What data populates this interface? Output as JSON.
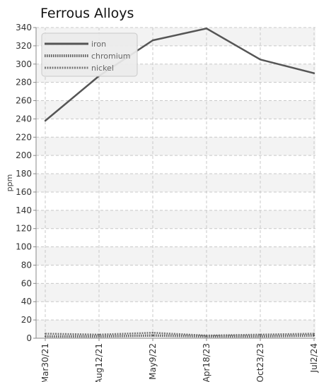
{
  "chart_data": {
    "type": "line",
    "title": "Ferrous Alloys",
    "ylabel": "ppm",
    "xlabel": "",
    "ylim": [
      0,
      340
    ],
    "y_ticks": [
      0,
      20,
      40,
      60,
      80,
      100,
      120,
      140,
      160,
      180,
      200,
      220,
      240,
      260,
      280,
      300,
      320,
      340
    ],
    "categories": [
      "Mar30/21",
      "Aug12/21",
      "May9/22",
      "Apr18/23",
      "Oct23/23",
      "Jul2/24"
    ],
    "grid": true,
    "legend_position": "top-left",
    "series": [
      {
        "name": "iron",
        "values": [
          238,
          287,
          326,
          339,
          305,
          290
        ],
        "color": "#555555",
        "style": "solid"
      },
      {
        "name": "chromium",
        "values": [
          2,
          2,
          3,
          2,
          2,
          3
        ],
        "color": "#666666",
        "style": "dotted"
      },
      {
        "name": "nickel",
        "values": [
          5,
          4,
          6,
          3,
          4,
          5
        ],
        "color": "#777777",
        "style": "dashed"
      }
    ]
  }
}
